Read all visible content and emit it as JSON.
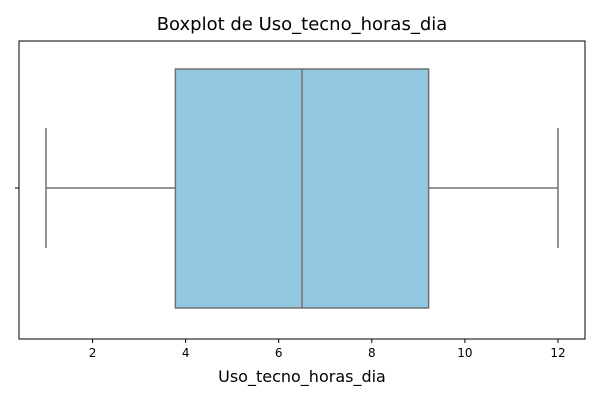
{
  "chart_data": {
    "type": "boxplot",
    "title": "Boxplot de Uso_tecno_horas_dia",
    "xlabel": "Uso_tecno_horas_dia",
    "ylabel": "",
    "orientation": "horizontal",
    "xlim": [
      0.42,
      12.58
    ],
    "x_ticks": [
      2,
      4,
      6,
      8,
      10,
      12
    ],
    "x_tick_labels": [
      "2",
      "4",
      "6",
      "8",
      "10",
      "12"
    ],
    "y_tick_labels": [
      ""
    ],
    "series": [
      {
        "min": 1.0,
        "q1": 3.78,
        "median": 6.5,
        "q3": 9.22,
        "max": 12.0
      }
    ],
    "grid": false,
    "legend": "none",
    "colors": {
      "box_fill": "#93c9e0",
      "line": "#707070",
      "axis": "#000000",
      "text": "#000000"
    }
  }
}
